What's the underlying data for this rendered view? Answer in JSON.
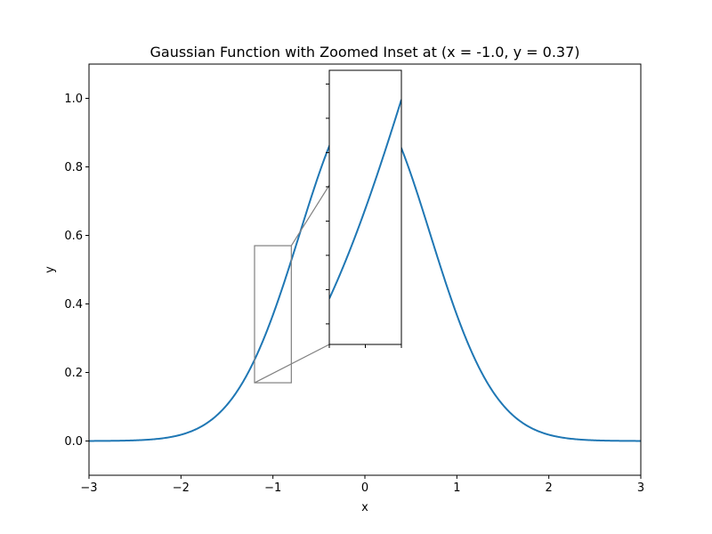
{
  "chart_data": {
    "type": "line",
    "title": "Gaussian Function with Zoomed Inset at (x = -1.0, y = 0.37)",
    "xlabel": "x",
    "ylabel": "y",
    "xlim": [
      -3,
      3
    ],
    "ylim": [
      -0.1,
      1.1
    ],
    "xticks": [
      -3,
      -2,
      -1,
      0,
      1,
      2,
      3
    ],
    "xtick_labels": [
      "−3",
      "−2",
      "−1",
      "0",
      "1",
      "2",
      "3"
    ],
    "yticks": [
      0.0,
      0.2,
      0.4,
      0.6,
      0.8,
      1.0
    ],
    "ytick_labels": [
      "0.0",
      "0.2",
      "0.4",
      "0.6",
      "0.8",
      "1.0"
    ],
    "grid": false,
    "series": [
      {
        "function": "exp(-x^2)",
        "x_range": [
          -3,
          3
        ],
        "color": "#1f77b4"
      }
    ],
    "zoom_region": {
      "xlim": [
        -1.2,
        -0.8
      ],
      "ylim": [
        0.17,
        0.57
      ],
      "color": "#808080"
    },
    "inset": {
      "xlim": [
        -1.2,
        -0.8
      ],
      "ylim": [
        0.17,
        0.57
      ],
      "xtick_count": 3,
      "ytick_count": 8,
      "tick_labels_shown": false
    }
  }
}
